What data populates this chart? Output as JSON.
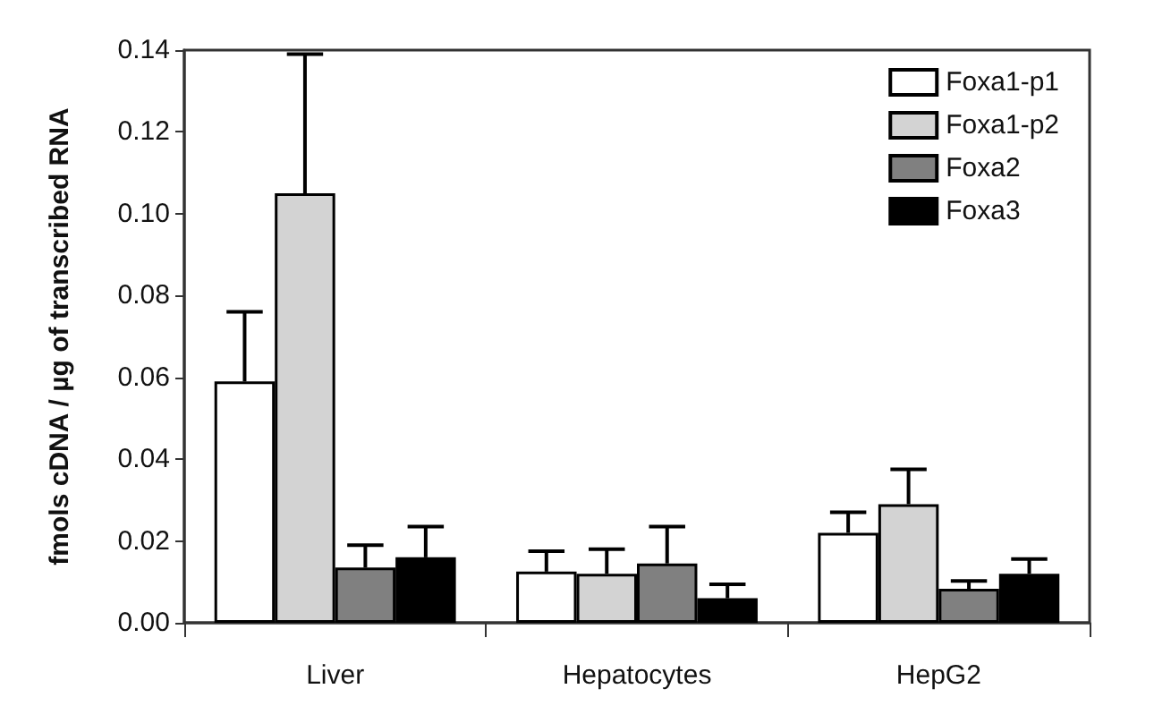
{
  "chart_data": {
    "type": "bar",
    "ylabel": "fmols cDNA / µg of transcribed RNA",
    "categories": [
      "Liver",
      "Hepatocytes",
      "HepG2"
    ],
    "series": [
      {
        "name": "Foxa1-p1",
        "color": "#ffffff",
        "values": [
          0.059,
          0.0125,
          0.022
        ],
        "errors": [
          [
            0.059,
            0.076
          ],
          [
            0.0125,
            0.0175
          ],
          [
            0.022,
            0.027
          ]
        ]
      },
      {
        "name": "Foxa1-p2",
        "color": "#d3d3d3",
        "values": [
          0.105,
          0.012,
          0.029
        ],
        "errors": [
          [
            0.105,
            0.139
          ],
          [
            0.012,
            0.018
          ],
          [
            0.029,
            0.0375
          ]
        ]
      },
      {
        "name": "Foxa2",
        "color": "#808080",
        "values": [
          0.0135,
          0.0145,
          0.0083
        ],
        "errors": [
          [
            0.0135,
            0.019
          ],
          [
            0.0145,
            0.0235
          ],
          [
            0.0083,
            0.0102
          ]
        ]
      },
      {
        "name": "Foxa3",
        "color": "#000000",
        "values": [
          0.016,
          0.006,
          0.012
        ],
        "errors": [
          [
            0.016,
            0.0235
          ],
          [
            0.006,
            0.0094
          ],
          [
            0.012,
            0.0156
          ]
        ]
      }
    ],
    "ylim": [
      0,
      0.14
    ],
    "yticks": [
      {
        "value": 0,
        "label": "0.00"
      },
      0.02,
      0.04,
      0.06,
      0.08,
      {
        "value": 0.1,
        "label": "0.10"
      },
      0.12,
      0.14
    ],
    "grid": false,
    "legend": "top right"
  }
}
